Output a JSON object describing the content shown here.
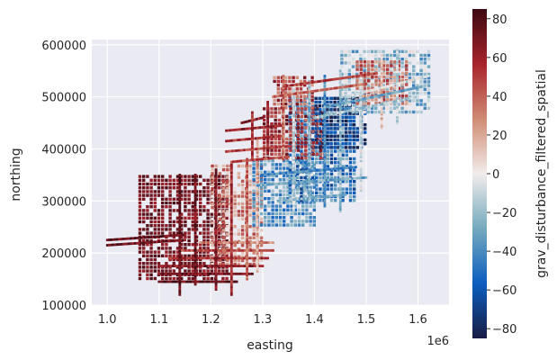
{
  "chart_data": {
    "type": "scatter",
    "title": "",
    "xlabel": "easting",
    "ylabel": "northing",
    "x_offset_label": "1e6",
    "xlim": [
      970000,
      1660000
    ],
    "ylim": [
      100000,
      610000
    ],
    "x_ticks": [
      1000000,
      1100000,
      1200000,
      1300000,
      1400000,
      1500000,
      1600000
    ],
    "x_tick_labels": [
      "1.0",
      "1.1",
      "1.2",
      "1.3",
      "1.4",
      "1.5",
      "1.6"
    ],
    "y_ticks": [
      100000,
      200000,
      300000,
      400000,
      500000,
      600000
    ],
    "y_tick_labels": [
      "100000",
      "200000",
      "300000",
      "400000",
      "500000",
      "600000"
    ],
    "grid": true,
    "background": "#eaeaf2",
    "colorbar": {
      "label": "grav_disturbance_filtered_spatial",
      "range": [
        -85,
        85
      ],
      "ticks": [
        80,
        60,
        40,
        20,
        0,
        -20,
        -40,
        -60,
        -80
      ],
      "tick_labels": [
        "80",
        "60",
        "40",
        "20",
        "0",
        "−20",
        "−40",
        "−60",
        "−80"
      ],
      "colormap": "balance",
      "colors": [
        "#181c43",
        "#0c5ebe",
        "#75aabe",
        "#f1eceb",
        "#d08b73",
        "#a7242c",
        "#3c0912"
      ]
    },
    "survey": {
      "regions": [
        {
          "x": [
            1060000,
            1230000
          ],
          "y": [
            150000,
            350000
          ],
          "value": 70,
          "noise": 12
        },
        {
          "x": [
            1200000,
            1300000
          ],
          "y": [
            180000,
            370000
          ],
          "value": 25,
          "noise": 25
        },
        {
          "x": [
            1280000,
            1400000
          ],
          "y": [
            250000,
            380000
          ],
          "value": -35,
          "noise": 20
        },
        {
          "x": [
            1350000,
            1480000
          ],
          "y": [
            300000,
            500000
          ],
          "value": -45,
          "noise": 25
        },
        {
          "x": [
            1300000,
            1420000
          ],
          "y": [
            380000,
            480000
          ],
          "value": 55,
          "noise": 20
        },
        {
          "x": [
            1400000,
            1500000
          ],
          "y": [
            400000,
            500000
          ],
          "value": -70,
          "noise": 15
        },
        {
          "x": [
            1450000,
            1620000
          ],
          "y": [
            470000,
            590000
          ],
          "value": -20,
          "noise": 25
        },
        {
          "x": [
            1480000,
            1580000
          ],
          "y": [
            490000,
            570000
          ],
          "value": 35,
          "noise": 20
        },
        {
          "x": [
            1320000,
            1400000
          ],
          "y": [
            480000,
            540000
          ],
          "value": 45,
          "noise": 25
        }
      ],
      "lines": [
        {
          "x": [
            1000000,
            1150000
          ],
          "y": [
            225000,
            235000
          ],
          "value": 75
        },
        {
          "x": [
            1000000,
            1150000
          ],
          "y": [
            215000,
            225000
          ],
          "value": 70
        },
        {
          "x": [
            1100000,
            1250000
          ],
          "y": [
            145000,
            145000
          ],
          "value": 75
        },
        {
          "x": [
            1100000,
            1280000
          ],
          "y": [
            160000,
            160000
          ],
          "value": 70
        },
        {
          "x": [
            1100000,
            1300000
          ],
          "y": [
            175000,
            175000
          ],
          "value": 65
        },
        {
          "x": [
            1120000,
            1310000
          ],
          "y": [
            190000,
            190000
          ],
          "value": 55
        },
        {
          "x": [
            1140000,
            1320000
          ],
          "y": [
            205000,
            205000
          ],
          "value": 45
        },
        {
          "x": [
            1180000,
            1320000
          ],
          "y": [
            220000,
            220000
          ],
          "value": 30
        },
        {
          "x": [
            1140000,
            1140000
          ],
          "y": [
            120000,
            350000
          ],
          "value": 75
        },
        {
          "x": [
            1170000,
            1170000
          ],
          "y": [
            140000,
            350000
          ],
          "value": 70
        },
        {
          "x": [
            1210000,
            1210000
          ],
          "y": [
            130000,
            360000
          ],
          "value": 65
        },
        {
          "x": [
            1240000,
            1240000
          ],
          "y": [
            120000,
            370000
          ],
          "value": 55
        },
        {
          "x": [
            1270000,
            1270000
          ],
          "y": [
            150000,
            380000
          ],
          "value": 40
        },
        {
          "x": [
            1290000,
            1290000
          ],
          "y": [
            165000,
            420000
          ],
          "value": 20
        },
        {
          "x": [
            1230000,
            1340000
          ],
          "y": [
            435000,
            445000
          ],
          "value": 60
        },
        {
          "x": [
            1230000,
            1340000
          ],
          "y": [
            415000,
            425000
          ],
          "value": 55
        },
        {
          "x": [
            1230000,
            1350000
          ],
          "y": [
            395000,
            405000
          ],
          "value": 50
        },
        {
          "x": [
            1240000,
            1350000
          ],
          "y": [
            375000,
            385000
          ],
          "value": 45
        },
        {
          "x": [
            1260000,
            1300000
          ],
          "y": [
            450000,
            460000
          ],
          "value": 65
        },
        {
          "x": [
            1280000,
            1280000
          ],
          "y": [
            380000,
            470000
          ],
          "value": 55
        },
        {
          "x": [
            1310000,
            1310000
          ],
          "y": [
            390000,
            490000
          ],
          "value": 60
        },
        {
          "x": [
            1340000,
            1340000
          ],
          "y": [
            380000,
            540000
          ],
          "value": 35
        },
        {
          "x": [
            1360000,
            1360000
          ],
          "y": [
            280000,
            520000
          ],
          "value": -10
        },
        {
          "x": [
            1390000,
            1390000
          ],
          "y": [
            300000,
            530000
          ],
          "value": -25
        },
        {
          "x": [
            1420000,
            1420000
          ],
          "y": [
            290000,
            540000
          ],
          "value": -40
        },
        {
          "x": [
            1450000,
            1450000
          ],
          "y": [
            280000,
            550000
          ],
          "value": -20
        },
        {
          "x": [
            1490000,
            1490000
          ],
          "y": [
            320000,
            540000
          ],
          "value": -5
        },
        {
          "x": [
            1530000,
            1530000
          ],
          "y": [
            440000,
            580000
          ],
          "value": 15
        },
        {
          "x": [
            1560000,
            1560000
          ],
          "y": [
            450000,
            590000
          ],
          "value": -10
        },
        {
          "x": [
            1290000,
            1500000
          ],
          "y": [
            330000,
            345000
          ],
          "value": -30
        },
        {
          "x": [
            1300000,
            1480000
          ],
          "y": [
            350000,
            365000
          ],
          "value": -40
        },
        {
          "x": [
            1330000,
            1460000
          ],
          "y": [
            300000,
            312000
          ],
          "value": -25
        },
        {
          "x": [
            1400000,
            1600000
          ],
          "y": [
            460000,
            500000
          ],
          "value": -15
        },
        {
          "x": [
            1420000,
            1610000
          ],
          "y": [
            480000,
            520000
          ],
          "value": -30
        },
        {
          "x": [
            1460000,
            1620000
          ],
          "y": [
            500000,
            540000
          ],
          "value": -5
        },
        {
          "x": [
            1340000,
            1520000
          ],
          "y": [
            520000,
            545000
          ],
          "value": 50
        },
        {
          "x": [
            1320000,
            1500000
          ],
          "y": [
            500000,
            525000
          ],
          "value": 40
        }
      ]
    }
  }
}
